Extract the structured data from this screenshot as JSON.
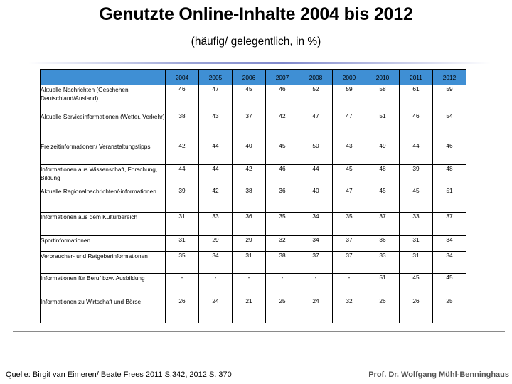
{
  "title": "Genutzte Online-Inhalte 2004 bis 2012",
  "subtitle": "(häufig/ gelegentlich, in %)",
  "table": {
    "header_fill": "#3f8fd4",
    "years": [
      "2004",
      "2005",
      "2006",
      "2007",
      "2008",
      "2009",
      "2010",
      "2011",
      "2012"
    ],
    "rows": [
      {
        "label": "Aktuelle Nachrichten (Geschehen Deutschland/Ausland)",
        "values": [
          "46",
          "47",
          "45",
          "46",
          "52",
          "59",
          "58",
          "61",
          "59"
        ]
      },
      {
        "label": "Aktuelle Serviceinformationen (Wetter, Verkehr)",
        "values": [
          "38",
          "43",
          "37",
          "42",
          "47",
          "47",
          "51",
          "46",
          "54"
        ]
      },
      {
        "label": "Freizeitinformationen/ Veranstaltungstipps",
        "values": [
          "42",
          "44",
          "40",
          "45",
          "50",
          "43",
          "49",
          "44",
          "46"
        ]
      },
      {
        "label": "Informationen aus Wissenschaft, Forschung, Bildung",
        "values": [
          "44",
          "44",
          "42",
          "46",
          "44",
          "45",
          "48",
          "39",
          "48"
        ]
      },
      {
        "label": "Aktuelle Regionalnachrichten/-informationen",
        "values": [
          "39",
          "42",
          "38",
          "36",
          "40",
          "47",
          "45",
          "45",
          "51"
        ]
      },
      {
        "label": "Informationen aus dem Kulturbereich",
        "values": [
          "31",
          "33",
          "36",
          "35",
          "34",
          "35",
          "37",
          "33",
          "37"
        ]
      },
      {
        "label": "Sportinformationen",
        "values": [
          "31",
          "29",
          "29",
          "32",
          "34",
          "37",
          "36",
          "31",
          "34"
        ]
      },
      {
        "label": "Verbraucher- und Ratgeberinformationen",
        "values": [
          "35",
          "34",
          "31",
          "38",
          "37",
          "37",
          "33",
          "31",
          "34"
        ]
      },
      {
        "label": "Informationen für Beruf bzw. Ausbildung",
        "values": [
          "-",
          "-",
          "-",
          "-",
          "-",
          "-",
          "51",
          "45",
          "45"
        ]
      },
      {
        "label": "Informationen zu Wirtschaft und Börse",
        "values": [
          "26",
          "24",
          "21",
          "25",
          "24",
          "32",
          "26",
          "26",
          "25"
        ]
      }
    ]
  },
  "footer": {
    "source": "Quelle: Birgit van Eimeren/ Beate Frees 2011 S.342, 2012 S. 370",
    "author": "Prof. Dr. Wolfgang Mühl-Benninghaus"
  }
}
